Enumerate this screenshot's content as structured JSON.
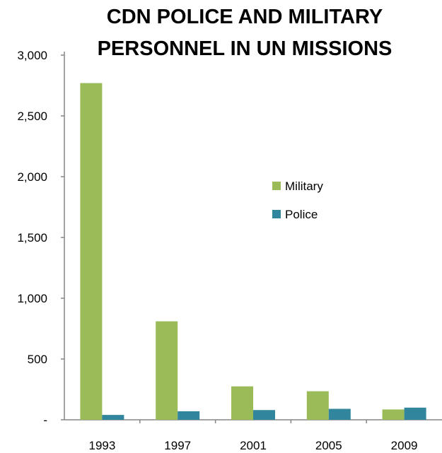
{
  "chart_data": {
    "type": "bar",
    "title_lines": [
      "CDN POLICE AND MILITARY",
      "PERSONNEL IN UN MISSIONS"
    ],
    "categories": [
      "1993",
      "1997",
      "2001",
      "2005",
      "2009"
    ],
    "series": [
      {
        "name": "Military",
        "color": "#9BBB59",
        "values": [
          2770,
          810,
          275,
          235,
          85
        ]
      },
      {
        "name": "Police",
        "color": "#31859C",
        "values": [
          40,
          70,
          80,
          90,
          100
        ]
      }
    ],
    "ylim": [
      0,
      3000
    ],
    "yticks": [
      0,
      500,
      1000,
      1500,
      2000,
      2500,
      3000
    ],
    "ytick_labels": [
      "-",
      "500",
      "1,000",
      "1,500",
      "2,000",
      "2,500",
      "3,000"
    ],
    "grid": false,
    "legend_position": "center-right"
  }
}
